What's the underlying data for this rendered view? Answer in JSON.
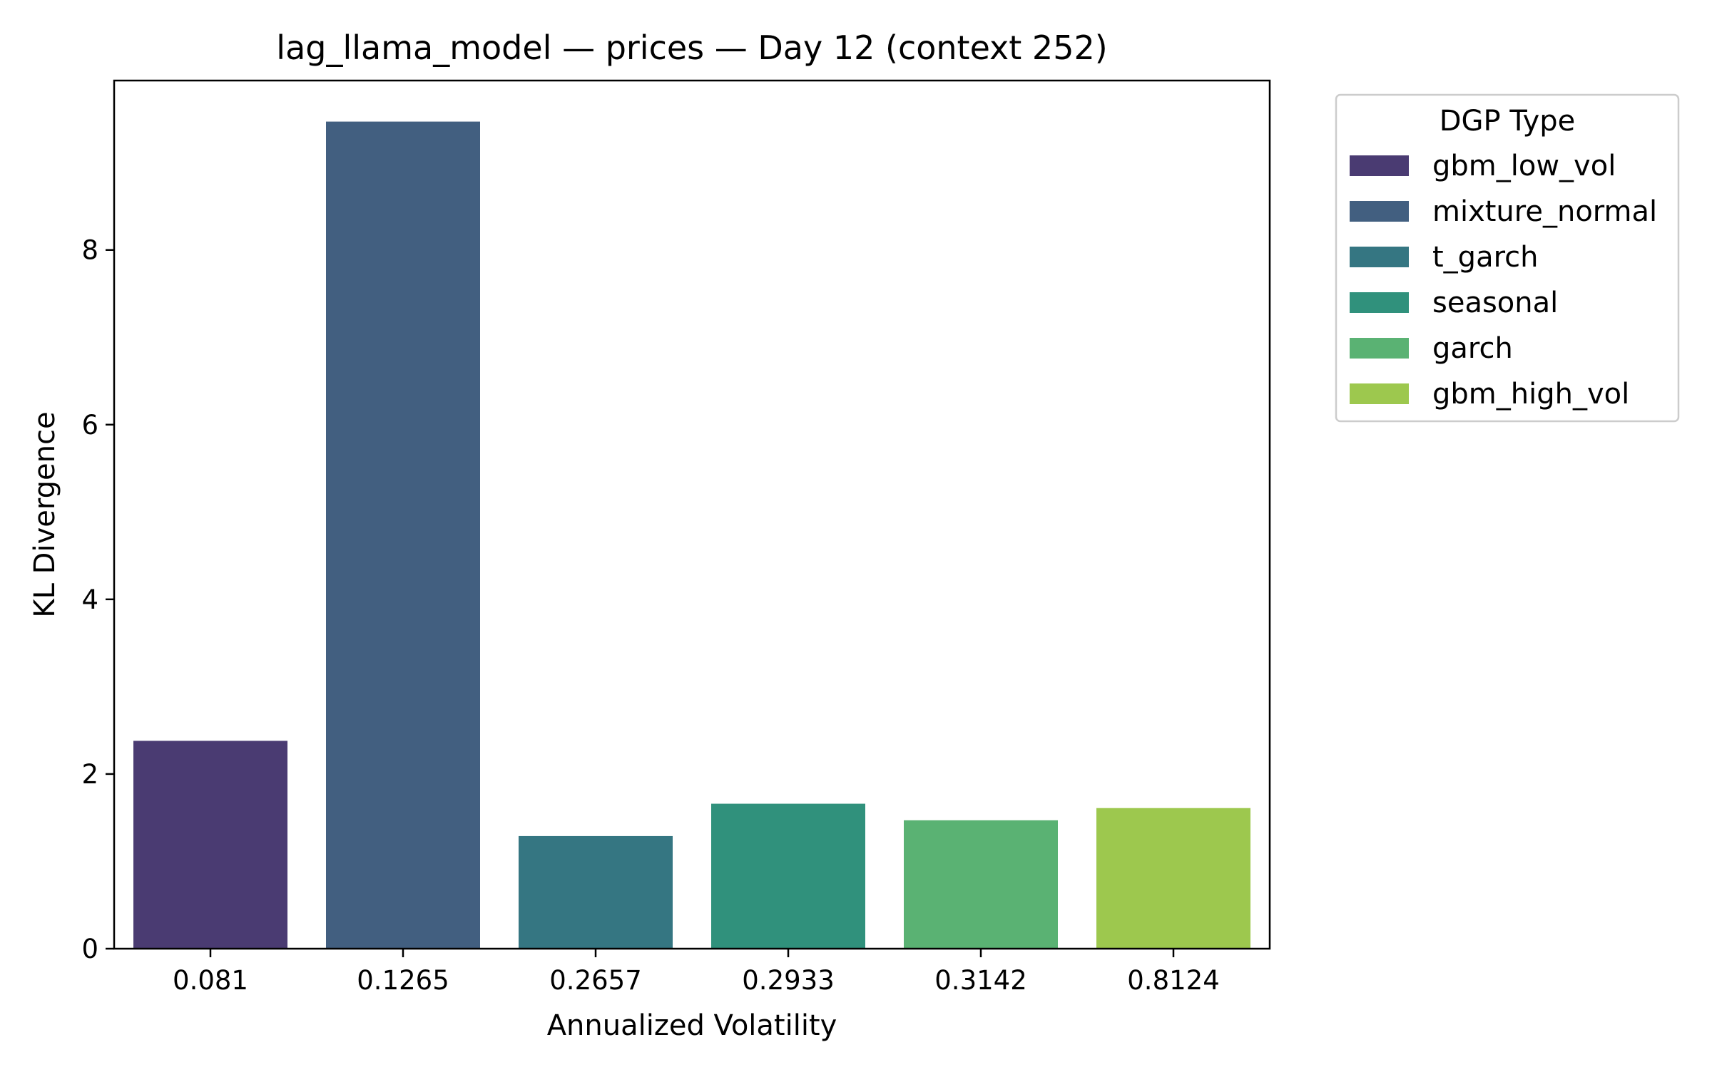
{
  "chart_data": {
    "type": "bar",
    "title": "lag_llama_model — prices — Day 12 (context 252)",
    "xlabel": "Annualized Volatility",
    "ylabel": "KL Divergence",
    "categories": [
      "0.081",
      "0.1265",
      "0.2657",
      "0.2933",
      "0.3142",
      "0.8124"
    ],
    "series": [
      {
        "name": "gbm_low_vol",
        "category": "0.081",
        "value": 2.38,
        "color": "#4a3b72"
      },
      {
        "name": "mixture_normal",
        "category": "0.1265",
        "value": 9.47,
        "color": "#425f80"
      },
      {
        "name": "t_garch",
        "category": "0.2657",
        "value": 1.29,
        "color": "#357682"
      },
      {
        "name": "seasonal",
        "category": "0.2933",
        "value": 1.66,
        "color": "#30917c"
      },
      {
        "name": "garch",
        "category": "0.3142",
        "value": 1.47,
        "color": "#5ab273"
      },
      {
        "name": "gbm_high_vol",
        "category": "0.8124",
        "value": 1.61,
        "color": "#9dc84e"
      }
    ],
    "ylim": [
      0,
      9.94
    ],
    "yticks": [
      0,
      2,
      4,
      6,
      8
    ],
    "grid": false,
    "legend": {
      "title": "DGP Type",
      "placement": "outside-upper-right"
    }
  }
}
